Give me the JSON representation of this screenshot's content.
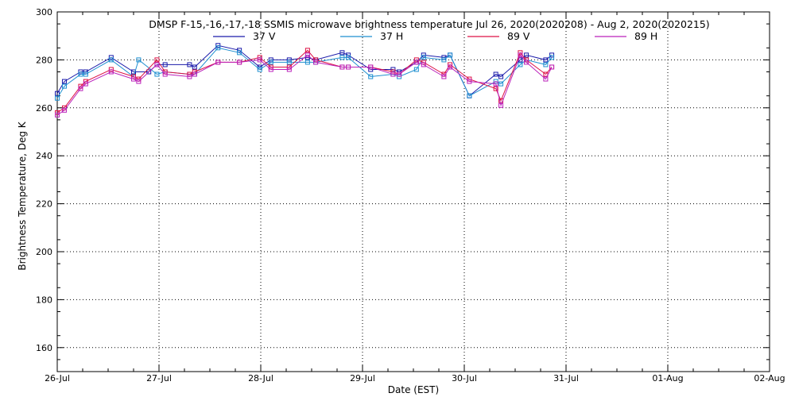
{
  "chart_data": {
    "type": "line",
    "title": "DMSP F-15,-16,-17,-18 SSMIS microwave brightness temperature Jul 26, 2020(2020208) - Aug  2, 2020(2020215)",
    "xlabel": "Date (EST)",
    "ylabel": "Brightness Temperature, Deg K",
    "x_tick_labels": [
      "26-Jul",
      "27-Jul",
      "28-Jul",
      "29-Jul",
      "30-Jul",
      "31-Jul",
      "01-Aug",
      "02-Aug"
    ],
    "xlim_days": [
      0,
      7
    ],
    "ylim": [
      150,
      300
    ],
    "y_ticks": [
      160,
      180,
      200,
      220,
      240,
      260,
      280,
      300
    ],
    "grid": true,
    "legend_position": "top-center",
    "series": [
      {
        "name": "37 V",
        "color": "#1a1aaa",
        "x": [
          0.0,
          0.07,
          0.23,
          0.28,
          0.53,
          0.75,
          0.9,
          0.98,
          1.06,
          1.3,
          1.35,
          1.58,
          1.79,
          1.99,
          2.1,
          2.28,
          2.46,
          2.54,
          2.8,
          2.86,
          3.08,
          3.3,
          3.36,
          3.53,
          3.6,
          3.8,
          3.86,
          4.05,
          4.31,
          4.36,
          4.55,
          4.61,
          4.8,
          4.86
        ],
        "y": [
          266,
          271,
          275,
          275,
          281,
          275,
          275,
          278,
          278,
          278,
          277,
          286,
          284,
          277,
          280,
          280,
          281,
          280,
          283,
          282,
          276,
          276,
          275,
          279,
          282,
          281,
          282,
          265,
          274,
          273,
          280,
          282,
          280,
          282
        ]
      },
      {
        "name": "37 H",
        "color": "#1e8fd0",
        "x": [
          0.0,
          0.07,
          0.23,
          0.28,
          0.53,
          0.75,
          0.8,
          0.98,
          1.06,
          1.3,
          1.35,
          1.58,
          1.79,
          1.99,
          2.1,
          2.28,
          2.46,
          2.54,
          2.8,
          2.86,
          3.08,
          3.3,
          3.36,
          3.53,
          3.6,
          3.8,
          3.86,
          4.05,
          4.31,
          4.36,
          4.55,
          4.61,
          4.8,
          4.86
        ],
        "y": [
          264,
          269,
          274,
          274,
          280,
          273,
          280,
          274,
          275,
          274,
          274,
          285,
          283,
          276,
          279,
          279,
          279,
          279,
          281,
          281,
          273,
          274,
          273,
          276,
          281,
          280,
          282,
          265,
          271,
          270,
          278,
          280,
          278,
          281
        ]
      },
      {
        "name": "89 V",
        "color": "#dd1144",
        "x": [
          0.0,
          0.07,
          0.23,
          0.28,
          0.53,
          0.75,
          0.8,
          0.98,
          1.06,
          1.3,
          1.35,
          1.58,
          1.79,
          1.99,
          2.1,
          2.28,
          2.46,
          2.54,
          2.8,
          2.86,
          3.08,
          3.3,
          3.36,
          3.53,
          3.6,
          3.8,
          3.86,
          4.05,
          4.31,
          4.36,
          4.55,
          4.61,
          4.8,
          4.86
        ],
        "y": [
          258,
          260,
          269,
          271,
          276,
          273,
          272,
          280,
          275,
          274,
          275,
          279,
          279,
          281,
          277,
          277,
          284,
          280,
          277,
          277,
          277,
          275,
          274,
          280,
          279,
          274,
          278,
          272,
          268,
          263,
          283,
          280,
          274,
          277
        ]
      },
      {
        "name": "89 H",
        "color": "#bb22bb",
        "x": [
          0.0,
          0.07,
          0.23,
          0.28,
          0.53,
          0.75,
          0.8,
          0.98,
          1.06,
          1.3,
          1.35,
          1.58,
          1.79,
          1.99,
          2.1,
          2.28,
          2.46,
          2.54,
          2.8,
          2.86,
          3.08,
          3.3,
          3.36,
          3.53,
          3.6,
          3.8,
          3.86,
          4.05,
          4.31,
          4.36,
          4.55,
          4.61,
          4.8,
          4.86
        ],
        "y": [
          257,
          259,
          268,
          270,
          275,
          272,
          271,
          278,
          274,
          273,
          274,
          279,
          279,
          280,
          276,
          276,
          282,
          279,
          277,
          277,
          277,
          274,
          274,
          279,
          278,
          273,
          277,
          271,
          270,
          261,
          282,
          279,
          272,
          277
        ]
      }
    ]
  }
}
